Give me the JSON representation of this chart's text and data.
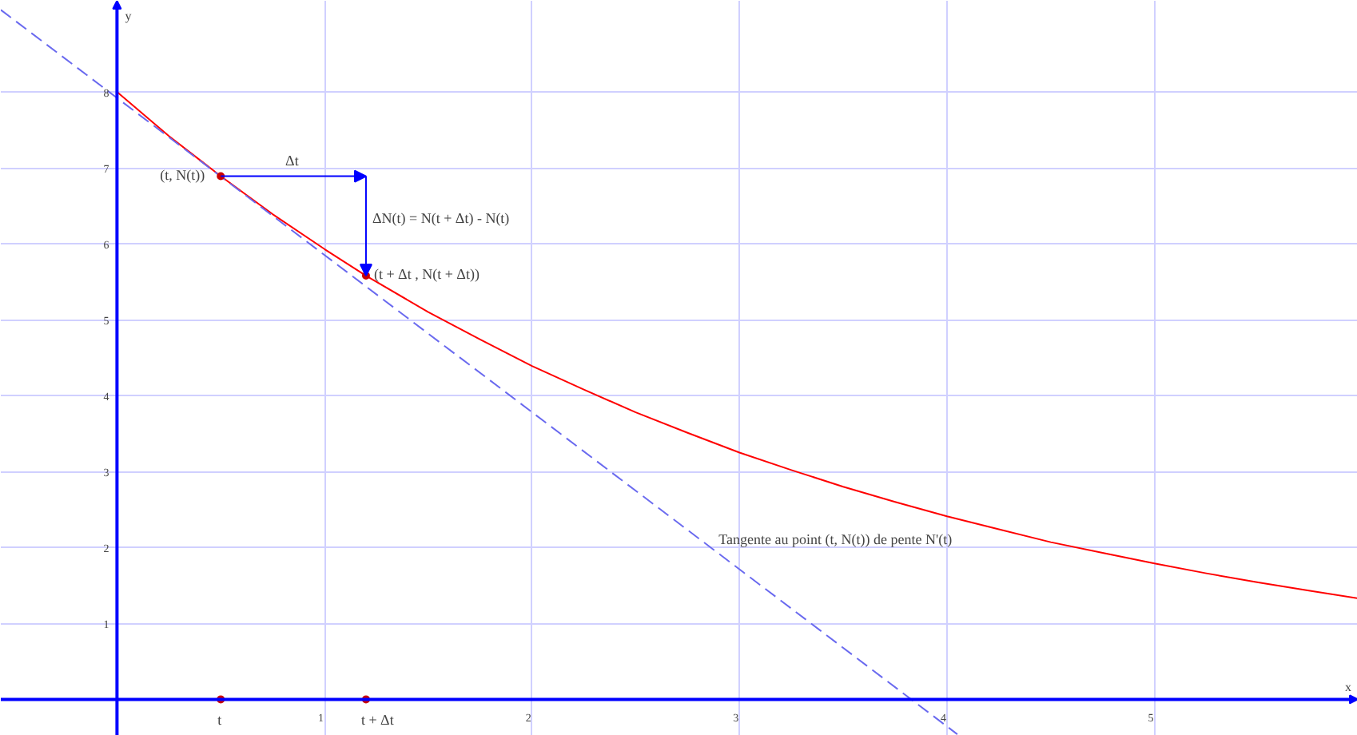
{
  "chart_data": {
    "type": "line",
    "xlabel": "x",
    "ylabel": "y",
    "xlim": [
      -0.56,
      5.98
    ],
    "ylim": [
      -0.48,
      9.2
    ],
    "xticks": [
      1,
      2,
      3,
      4,
      5
    ],
    "yticks": [
      1,
      2,
      3,
      4,
      5,
      6,
      7,
      8
    ],
    "grid": true,
    "series": [
      {
        "color": "#ff0000",
        "x": [
          0,
          0.25,
          0.5,
          0.75,
          1,
          1.2,
          1.5,
          1.75,
          2,
          2.25,
          2.5,
          2.75,
          3,
          3.25,
          3.5,
          3.75,
          4,
          4.25,
          4.5,
          4.75,
          5,
          5.25,
          5.5,
          5.75,
          5.98
        ],
        "values": [
          8,
          7.42,
          6.89,
          6.39,
          5.93,
          5.58,
          5.1,
          4.74,
          4.39,
          4.08,
          3.78,
          3.51,
          3.25,
          3.02,
          2.8,
          2.6,
          2.41,
          2.24,
          2.07,
          1.93,
          1.79,
          1.66,
          1.54,
          1.43,
          1.33
        ]
      },
      {
        "type": "line",
        "color": "#6a6aef",
        "line_style": "dashed",
        "x": [
          -0.56,
          4.05
        ],
        "values": [
          9.08,
          -0.46
        ]
      },
      {
        "type": "scatter",
        "color": "#cc0000",
        "marker": "circle",
        "x": [
          0.5,
          1.2,
          0.5,
          1.2
        ],
        "values": [
          6.89,
          5.58,
          0,
          0
        ]
      }
    ],
    "annotations": [
      {
        "text": "(t, N(t))",
        "x": 0.5,
        "y": 6.89
      },
      "Δt",
      "ΔN(t) = N(t + Δt) - N(t)",
      {
        "text": "(t + Δt , N(t + Δt))",
        "x": 1.2,
        "y": 5.58
      },
      {
        "text": "t",
        "x": 0.5,
        "y": 0
      },
      {
        "text": "t + Δt",
        "x": 1.2,
        "y": 0
      },
      {
        "text": "Tangente au point (t, N(t)) de pente N'(t)",
        "x": 2.9,
        "y": 2.0
      }
    ]
  }
}
